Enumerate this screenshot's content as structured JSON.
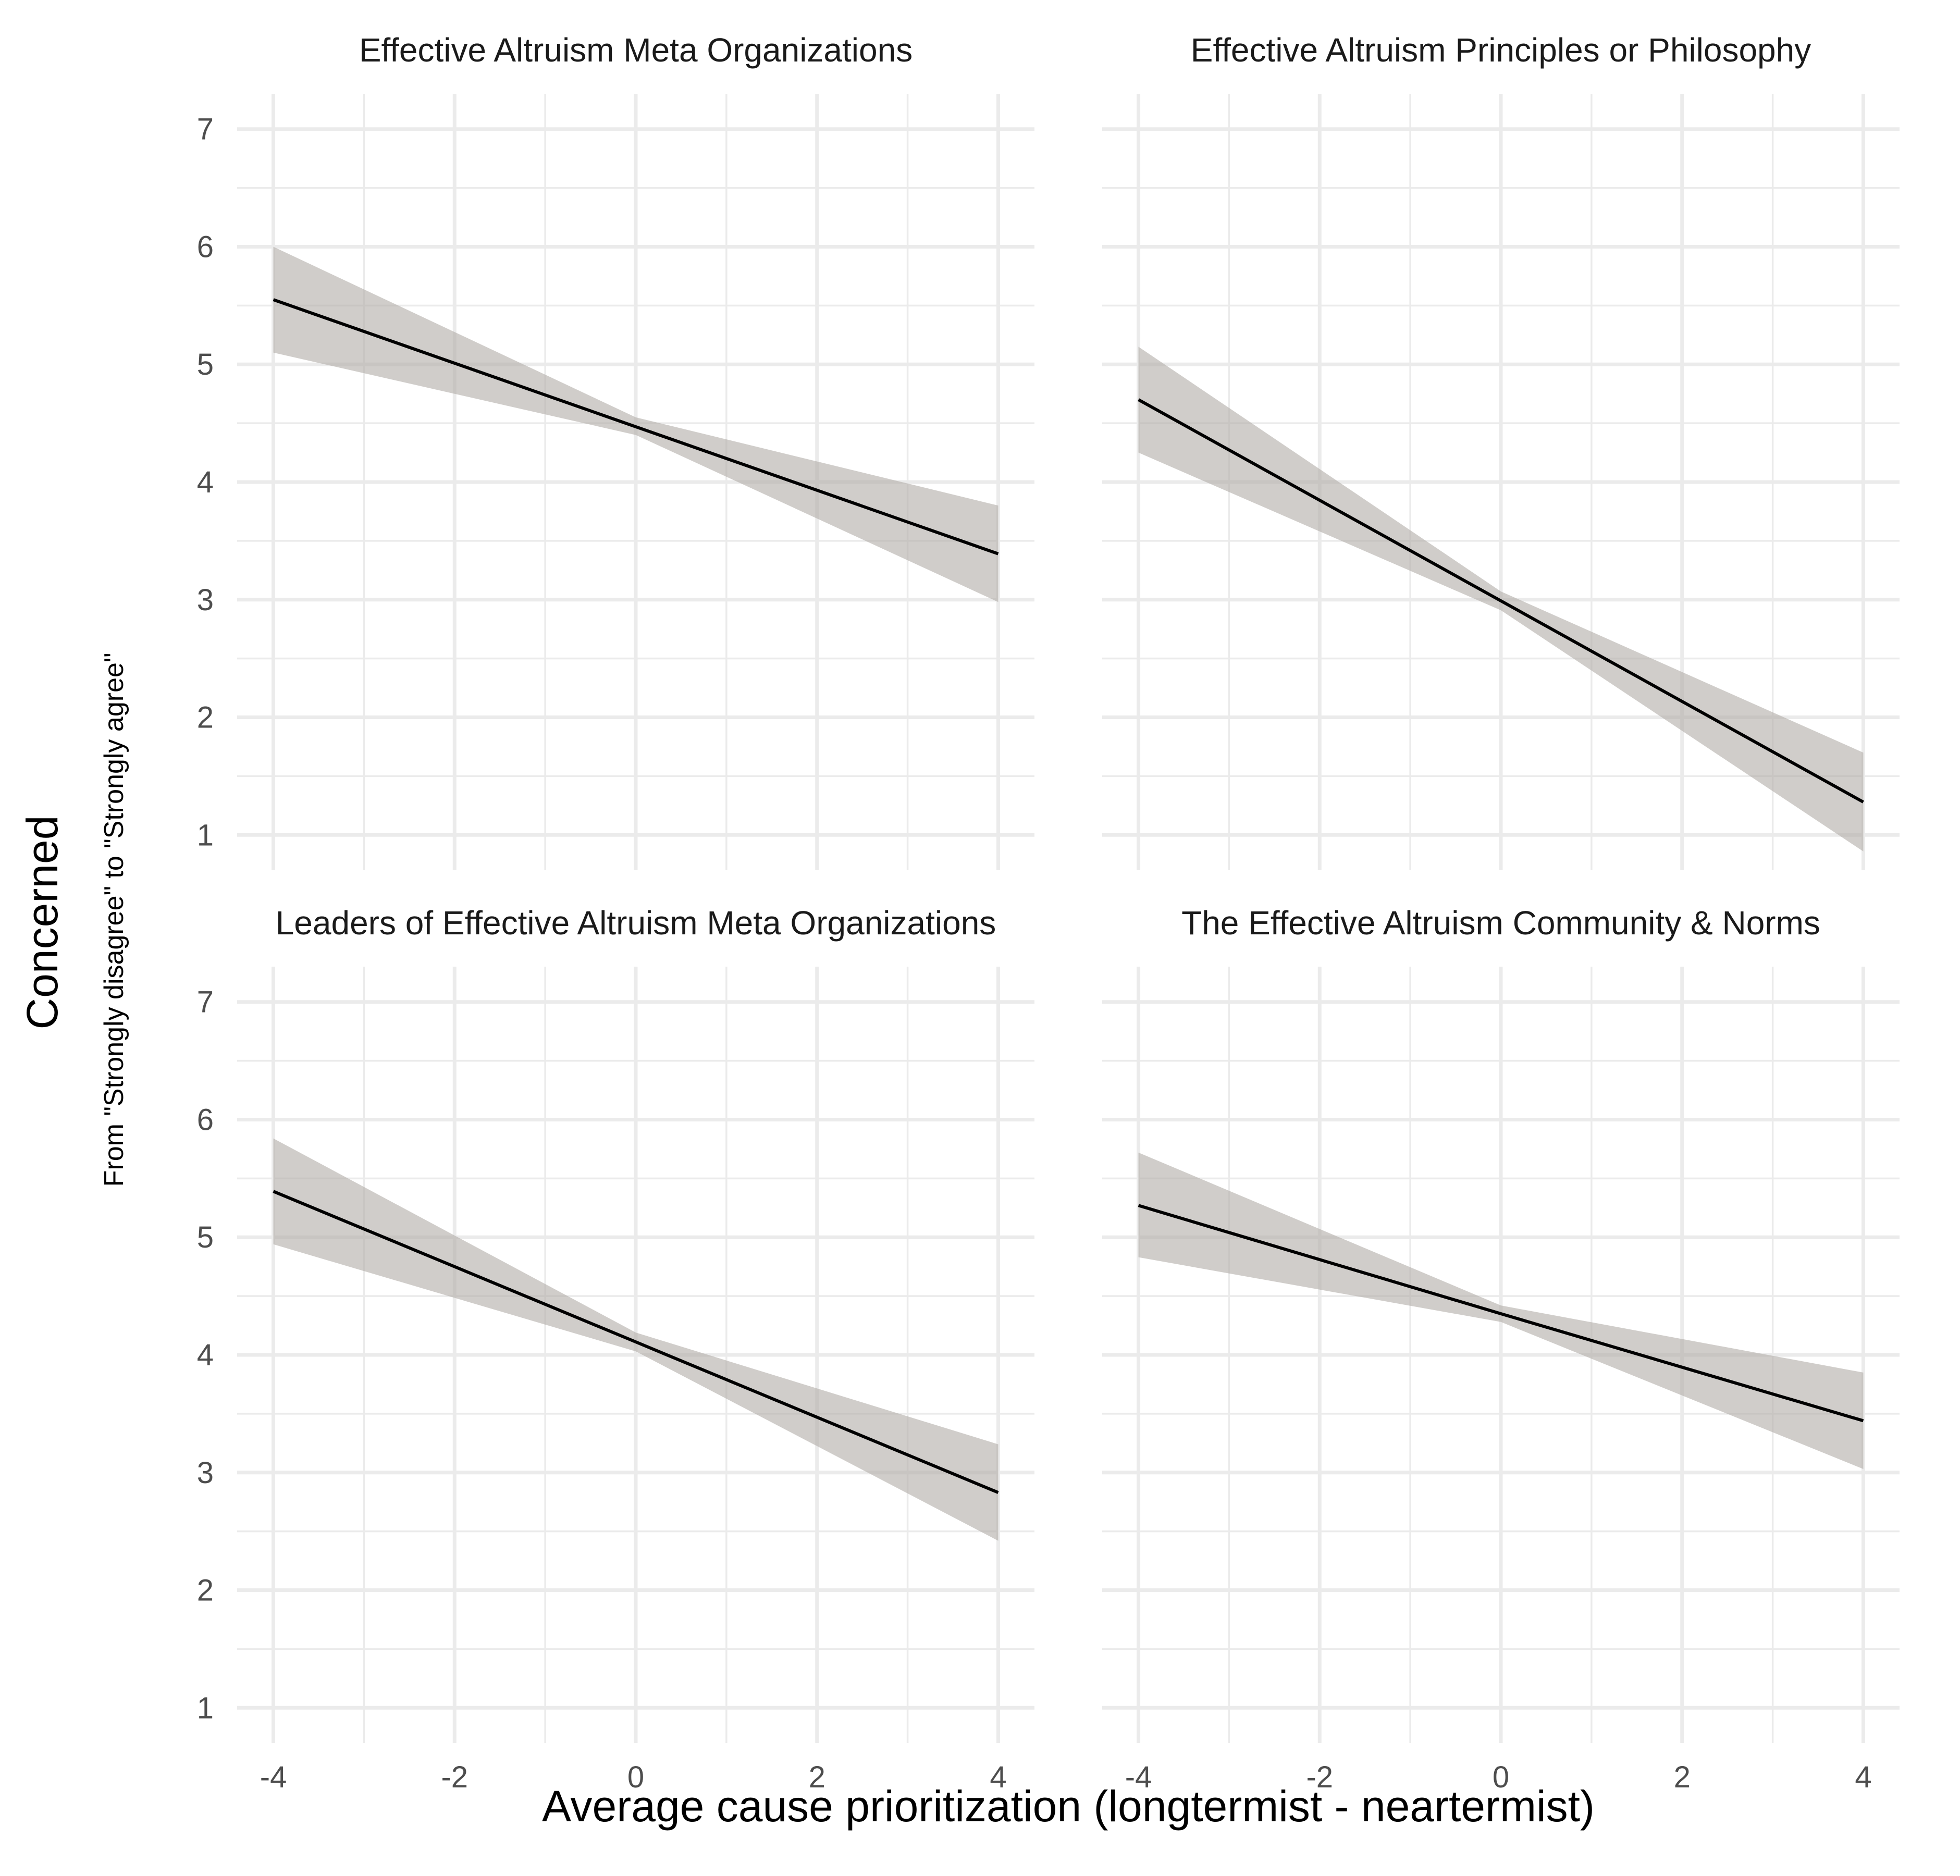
{
  "chart_data": {
    "type": "line",
    "xlabel": "Average cause prioritization (longtermist - neartermist)",
    "ylabel": "Concerned",
    "ylabel_sub": "From \"Strongly disagree\" to \"Strongly agree\"",
    "xlim": [
      -4.4,
      4.4
    ],
    "ylim": [
      0.7,
      7.3
    ],
    "x_ticks": [
      -4,
      -2,
      0,
      2,
      4
    ],
    "x_tick_labels": [
      "-4",
      "-2",
      "0",
      "2",
      "4"
    ],
    "y_ticks": [
      1,
      2,
      3,
      4,
      5,
      6,
      7
    ],
    "y_tick_labels": [
      "1",
      "2",
      "3",
      "4",
      "5",
      "6",
      "7"
    ],
    "grid": true,
    "colors": {
      "line": "#000000",
      "band": "#b3aea9",
      "grid": "#ebebeb"
    },
    "facets": [
      {
        "title": "Effective Altruism Meta Organizations",
        "x": [
          -4,
          0,
          4
        ],
        "y": [
          5.55,
          4.47,
          3.39
        ],
        "lower": [
          5.1,
          4.4,
          2.98
        ],
        "upper": [
          6.0,
          4.55,
          3.8
        ]
      },
      {
        "title": "Effective Altruism Principles or Philosophy",
        "x": [
          -4,
          0,
          4
        ],
        "y": [
          4.7,
          2.99,
          1.28
        ],
        "lower": [
          4.25,
          2.91,
          0.86
        ],
        "upper": [
          5.15,
          3.07,
          1.7
        ]
      },
      {
        "title": "Leaders of Effective Altruism Meta Organizations",
        "x": [
          -4,
          0,
          4
        ],
        "y": [
          5.39,
          4.11,
          2.83
        ],
        "lower": [
          4.94,
          4.03,
          2.42
        ],
        "upper": [
          5.84,
          4.19,
          3.24
        ]
      },
      {
        "title": "The Effective Altruism Community & Norms",
        "x": [
          -4,
          0,
          4
        ],
        "y": [
          5.27,
          4.35,
          3.44
        ],
        "lower": [
          4.83,
          4.28,
          3.03
        ],
        "upper": [
          5.72,
          4.42,
          3.85
        ]
      }
    ]
  }
}
